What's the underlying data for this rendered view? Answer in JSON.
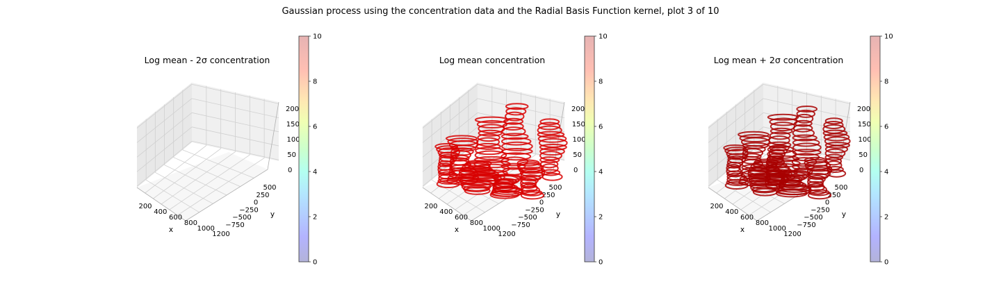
{
  "figure_title": "Gaussian process using the  concentration data and the Radial Basis Function kernel, plot 3 of 10",
  "colorbar": {
    "ticks": [
      "0",
      "2",
      "4",
      "6",
      "8",
      "10"
    ],
    "range": [
      0,
      10
    ],
    "colormap": "jet",
    "alpha": 0.3
  },
  "axis_labels": {
    "x": "x",
    "y": "y"
  },
  "x_ticks": [
    "200",
    "400",
    "600",
    "800",
    "1000",
    "1200"
  ],
  "y_ticks": [
    "500",
    "250",
    "0",
    "−250",
    "−500",
    "−750"
  ],
  "z_ticks": [
    "0",
    "50",
    "100",
    "150",
    "200"
  ],
  "colors": {
    "data_mean": "#d80000",
    "data_upper": "#a80000",
    "pane": "#f2f2f2",
    "grid": "#d6d6d6"
  },
  "chart_data": [
    {
      "type": "scatter",
      "title": "Log mean - 2σ concentration",
      "xlabel": "x",
      "ylabel": "y",
      "zlabel": "",
      "xlim": [
        100,
        1300
      ],
      "ylim": [
        -850,
        600
      ],
      "zlim": [
        0,
        210
      ],
      "colorbar_range": [
        0,
        10
      ],
      "points": "none visible"
    },
    {
      "type": "scatter",
      "title": "Log mean concentration",
      "xlabel": "x",
      "ylabel": "y",
      "zlabel": "",
      "xlim": [
        100,
        1300
      ],
      "ylim": [
        -850,
        600
      ],
      "zlim": [
        0,
        210
      ],
      "colorbar_range": [
        0,
        10
      ],
      "color_value_approx": 10,
      "points": "dense stacked layers of contour rings spanning x 200-1200, y -750-500, z 0-200"
    },
    {
      "type": "scatter",
      "title": "Log mean + 2σ concentration",
      "xlabel": "x",
      "ylabel": "y",
      "zlabel": "",
      "xlim": [
        100,
        1300
      ],
      "ylim": [
        -850,
        600
      ],
      "zlim": [
        0,
        210
      ],
      "colorbar_range": [
        0,
        10
      ],
      "color_value_approx": 10,
      "points": "dense stacked layers of contour rings spanning x 200-1200, y -750-500, z 0-200"
    }
  ]
}
